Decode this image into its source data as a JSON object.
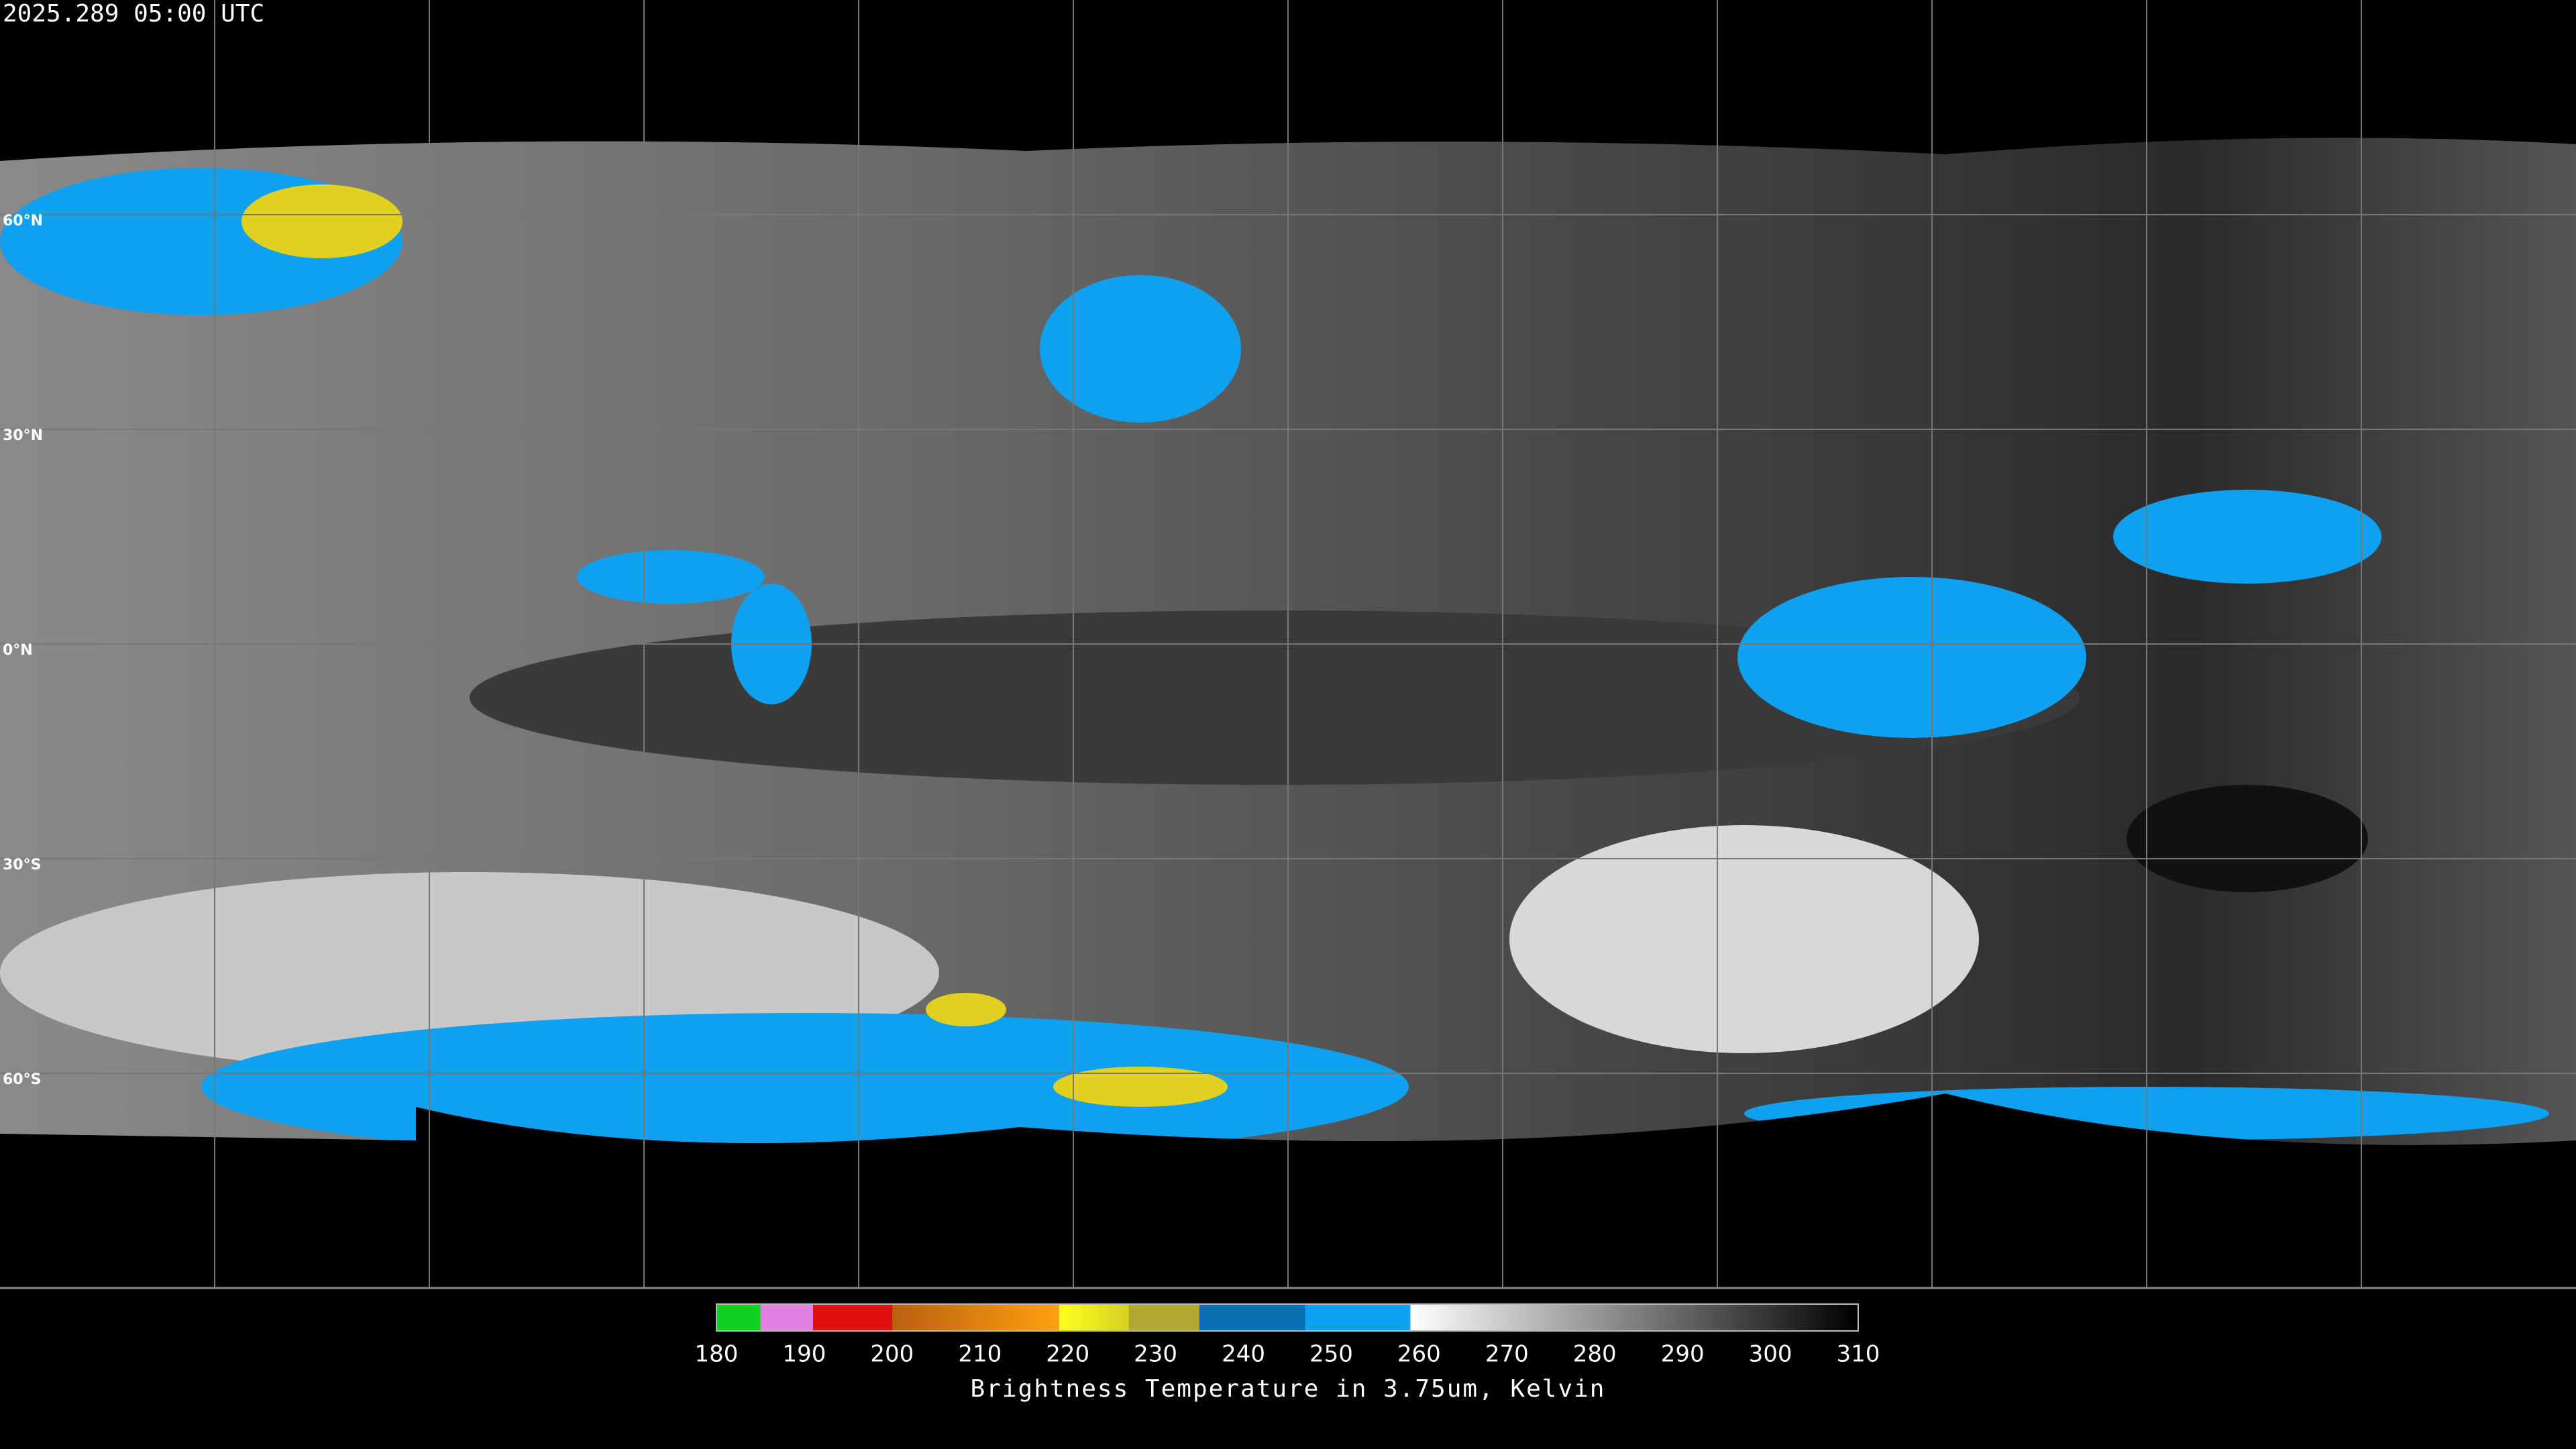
{
  "timestamp": "2025.289 05:00 UTC",
  "map": {
    "lon_range": [
      -180,
      180
    ],
    "lat_range": [
      90,
      -90
    ],
    "latitude_lines": [
      {
        "value": 60,
        "label": "60°N"
      },
      {
        "value": 30,
        "label": "30°N"
      },
      {
        "value": 0,
        "label": "0°N"
      },
      {
        "value": -30,
        "label": "30°S"
      },
      {
        "value": -60,
        "label": "60°S"
      }
    ],
    "longitude_lines": [
      -150,
      -120,
      -90,
      -60,
      -30,
      0,
      30,
      60,
      90,
      120,
      150
    ]
  },
  "colorbar": {
    "label": "Brightness Temperature in 3.75um, Kelvin",
    "range": [
      180,
      310
    ],
    "ticks": [
      180,
      190,
      200,
      210,
      220,
      230,
      240,
      250,
      260,
      270,
      280,
      290,
      300,
      310
    ],
    "segments": [
      {
        "from": 180,
        "to": 185,
        "color": "#10d020"
      },
      {
        "from": 185,
        "to": 191,
        "color": "#e080e0"
      },
      {
        "from": 191,
        "to": 200,
        "color": "#e01010"
      },
      {
        "from": 200,
        "to": 219,
        "color": "#b86010",
        "color_end": "#ffa010"
      },
      {
        "from": 219,
        "to": 227,
        "color": "#ffff20",
        "color_end": "#d8d020"
      },
      {
        "from": 227,
        "to": 235,
        "color": "#b0a830"
      },
      {
        "from": 235,
        "to": 247,
        "color": "#0870b0"
      },
      {
        "from": 247,
        "to": 259,
        "color": "#10a0f0"
      },
      {
        "from": 259,
        "to": 310,
        "color": "#ffffff",
        "color_end": "#000000"
      }
    ]
  }
}
